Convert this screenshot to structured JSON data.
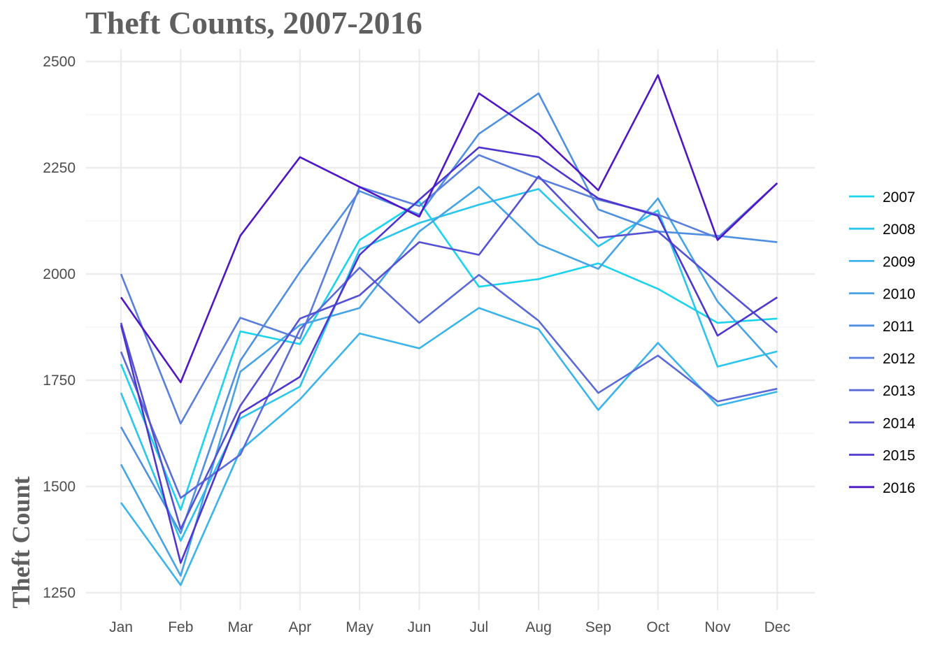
{
  "chart_data": {
    "type": "line",
    "title": "Theft Counts, 2007-2016",
    "xlabel": "",
    "ylabel": "Theft Count",
    "categories": [
      "Jan",
      "Feb",
      "Mar",
      "Apr",
      "May",
      "Jun",
      "Jul",
      "Aug",
      "Sep",
      "Oct",
      "Nov",
      "Dec"
    ],
    "y_ticks": [
      "1250",
      "1500",
      "1750",
      "2000",
      "2250",
      "2500"
    ],
    "ylim": [
      1225,
      2525
    ],
    "grid": true,
    "legend_position": "right",
    "series": [
      {
        "name": "2007",
        "color": "#1ad4ed",
        "values": [
          1788,
          1445,
          1865,
          1835,
          2080,
          2170,
          1970,
          1988,
          2025,
          1965,
          1885,
          1895
        ]
      },
      {
        "name": "2008",
        "color": "#2ac5ec",
        "values": [
          1720,
          1372,
          1660,
          1735,
          2058,
          2120,
          2163,
          2200,
          2065,
          2150,
          1782,
          1818
        ]
      },
      {
        "name": "2009",
        "color": "#3ab4ea",
        "values": [
          1462,
          1268,
          1585,
          1705,
          1860,
          1825,
          1920,
          1870,
          1680,
          1838,
          1690,
          1723
        ]
      },
      {
        "name": "2010",
        "color": "#46a3e6",
        "values": [
          1552,
          1290,
          1770,
          1880,
          1920,
          2100,
          2205,
          2070,
          2012,
          2178,
          1935,
          1780
        ]
      },
      {
        "name": "2011",
        "color": "#4f8fe2",
        "values": [
          1640,
          1390,
          1796,
          2005,
          2195,
          2140,
          2330,
          2425,
          2152,
          2100,
          2090,
          2075
        ]
      },
      {
        "name": "2012",
        "color": "#5a7ede",
        "values": [
          2000,
          1648,
          1897,
          1848,
          2205,
          2160,
          2280,
          2225,
          2175,
          2140,
          2085,
          2214
        ]
      },
      {
        "name": "2013",
        "color": "#5a6ad9",
        "values": [
          1817,
          1473,
          1575,
          1870,
          2015,
          1885,
          1998,
          1890,
          1720,
          1808,
          1700,
          1730
        ]
      },
      {
        "name": "2014",
        "color": "#5451d4",
        "values": [
          1885,
          1400,
          1690,
          1895,
          1950,
          2075,
          2045,
          2230,
          2085,
          2100,
          1980,
          1862
        ]
      },
      {
        "name": "2015",
        "color": "#4f35cf",
        "values": [
          1880,
          1320,
          1672,
          1758,
          2045,
          2175,
          2298,
          2275,
          2178,
          2137,
          1855,
          1945
        ]
      },
      {
        "name": "2016",
        "color": "#4f16c8",
        "values": [
          1945,
          1745,
          2090,
          2275,
          2205,
          2135,
          2425,
          2330,
          2197,
          2468,
          2080,
          2214
        ]
      }
    ]
  }
}
